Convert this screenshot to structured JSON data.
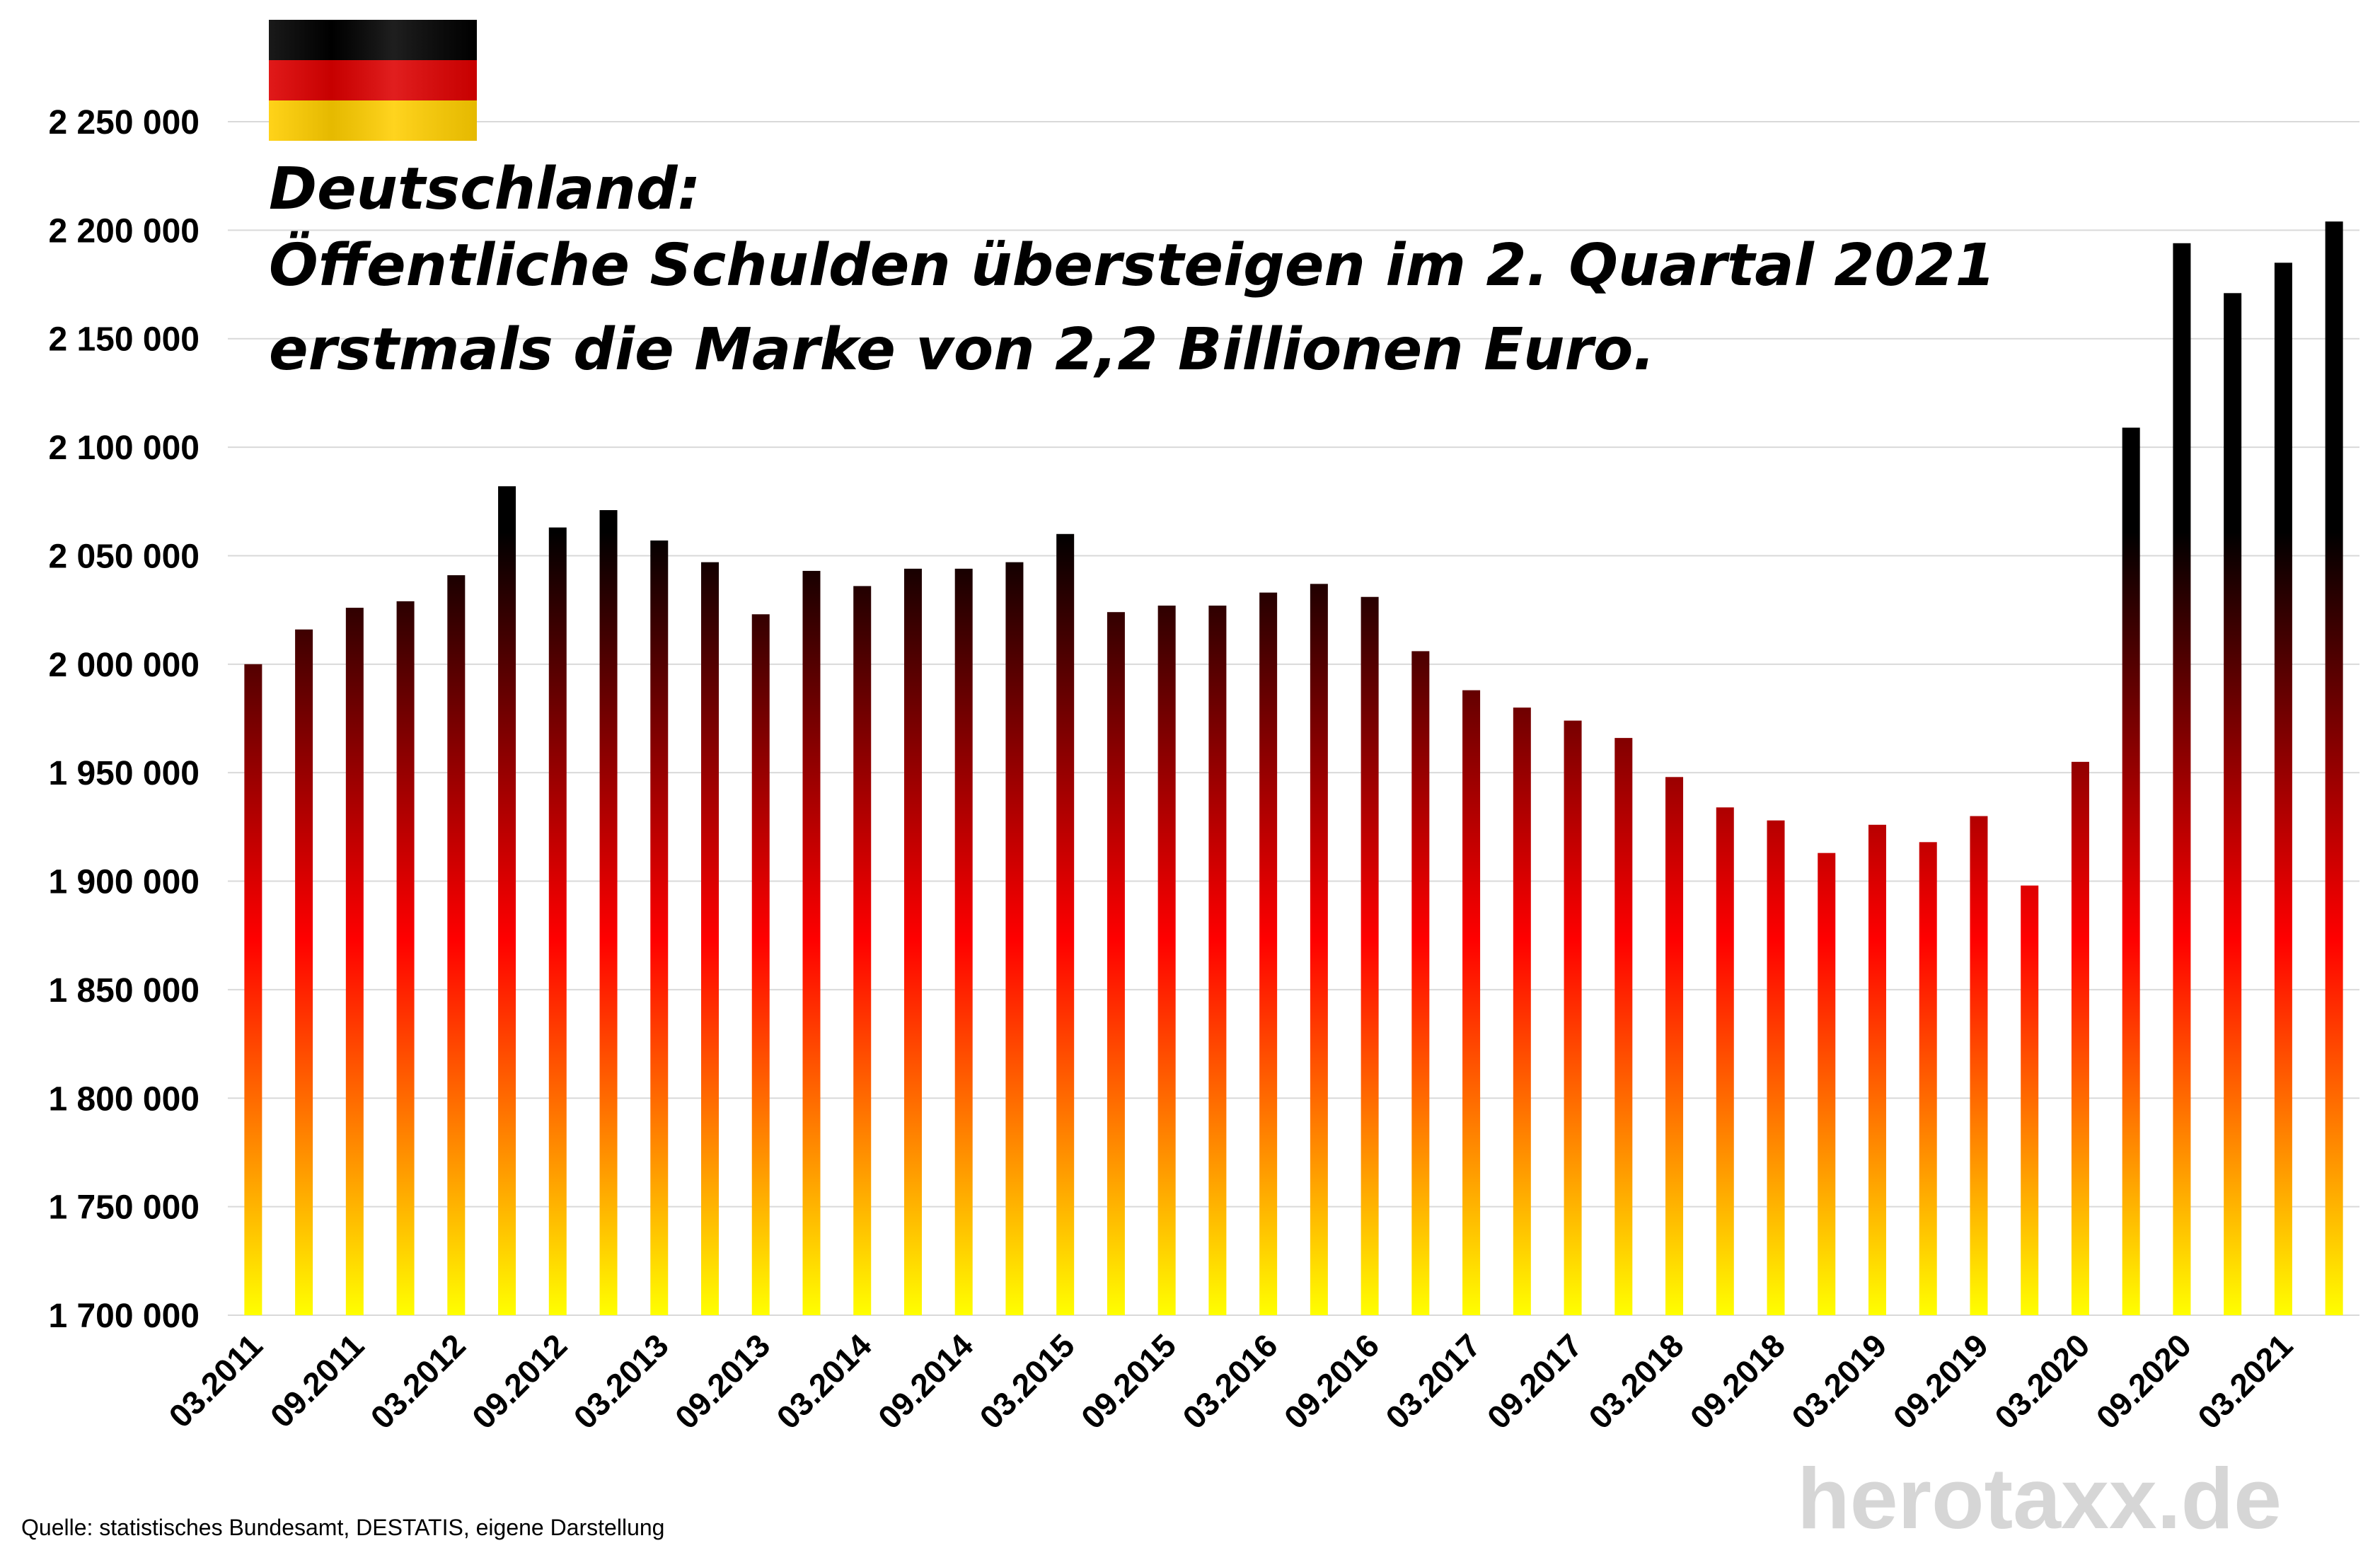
{
  "chart_data": {
    "type": "bar",
    "title_lines": [
      "Deutschland:",
      "Öffentliche Schulden übersteigen im 2. Quartal 2021",
      "erstmals die Marke von 2,2 Billionen Euro."
    ],
    "xlabel": "",
    "ylabel": "",
    "ylim": [
      1700000,
      2250000
    ],
    "y_ticks": [
      {
        "value": 1700000,
        "label": "1 700 000"
      },
      {
        "value": 1750000,
        "label": "1 750 000"
      },
      {
        "value": 1800000,
        "label": "1 800 000"
      },
      {
        "value": 1850000,
        "label": "1 850 000"
      },
      {
        "value": 1900000,
        "label": "1 900 000"
      },
      {
        "value": 1950000,
        "label": "1 950 000"
      },
      {
        "value": 2000000,
        "label": "2 000 000"
      },
      {
        "value": 2050000,
        "label": "2 050 000"
      },
      {
        "value": 2100000,
        "label": "2 100 000"
      },
      {
        "value": 2150000,
        "label": "2 150 000"
      },
      {
        "value": 2200000,
        "label": "2 200 000"
      },
      {
        "value": 2250000,
        "label": "2 250 000"
      }
    ],
    "categories": [
      "03.2011",
      "06.2011",
      "09.2011",
      "12.2011",
      "03.2012",
      "06.2012",
      "09.2012",
      "12.2012",
      "03.2013",
      "06.2013",
      "09.2013",
      "12.2013",
      "03.2014",
      "06.2014",
      "09.2014",
      "12.2014",
      "03.2015",
      "06.2015",
      "09.2015",
      "12.2015",
      "03.2016",
      "06.2016",
      "09.2016",
      "12.2016",
      "03.2017",
      "06.2017",
      "09.2017",
      "12.2017",
      "03.2018",
      "06.2018",
      "09.2018",
      "12.2018",
      "03.2019",
      "06.2019",
      "09.2019",
      "12.2019",
      "03.2020",
      "06.2020",
      "09.2020",
      "12.2020",
      "03.2021",
      "06.2021"
    ],
    "x_tick_labels": [
      "03.2011",
      "09.2011",
      "03.2012",
      "09.2012",
      "03.2013",
      "09.2013",
      "03.2014",
      "09.2014",
      "03.2015",
      "09.2015",
      "03.2016",
      "09.2016",
      "03.2017",
      "09.2017",
      "03.2018",
      "09.2018",
      "03.2019",
      "09.2019",
      "03.2020",
      "09.2020",
      "03.2021"
    ],
    "values": [
      2000000,
      2016000,
      2026000,
      2029000,
      2041000,
      2082000,
      2063000,
      2071000,
      2057000,
      2047000,
      2023000,
      2043000,
      2036000,
      2044000,
      2044000,
      2047000,
      2060000,
      2024000,
      2027000,
      2027000,
      2033000,
      2037000,
      2031000,
      2006000,
      1988000,
      1980000,
      1974000,
      1966000,
      1948000,
      1934000,
      1928000,
      1913000,
      1926000,
      1918000,
      1930000,
      1898000,
      1955000,
      2109000,
      2194000,
      2171000,
      2185000,
      2204000
    ],
    "grid": true,
    "legend": "none",
    "bar_gradient_colors": [
      "#000000",
      "#8a0000",
      "#ff0000",
      "#ff8800",
      "#ffff00"
    ],
    "gridline_color": "#d9d9d9"
  },
  "flag": {
    "colors": [
      "#000000",
      "#dd0000",
      "#ffce00"
    ]
  },
  "source_text": "Quelle: statistisches Bundesamt, DESTATIS, eigene Darstellung",
  "watermark_text": "herotaxx.de"
}
